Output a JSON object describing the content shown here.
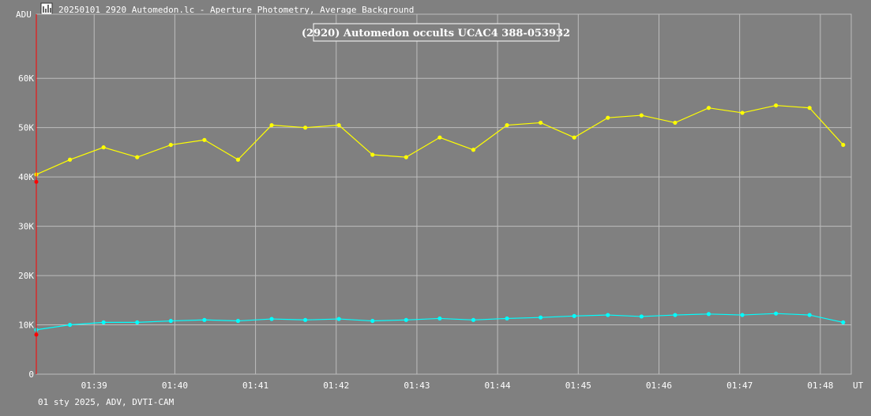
{
  "window": {
    "title": "20250101_2920_Automedon.lc - Aperture Photometry, Average Background",
    "icon": "lightcurve-app-icon"
  },
  "footer": {
    "text": "01 sty 2025, ADV, DVTI-CAM"
  },
  "colors": {
    "background": "#808080",
    "grid": "#bdbdbd",
    "target_series": "#ffff00",
    "comparison_series": "#00ffff",
    "marker": "#ff0000",
    "text": "#ffffff"
  },
  "chart_data": {
    "type": "line",
    "title": "(2920) Automedon occults UCAC4 388-053932",
    "ylabel": "ADU",
    "xlabel": "UT",
    "x_ticks": [
      "01:39",
      "01:40",
      "01:41",
      "01:42",
      "01:43",
      "01:44",
      "01:45",
      "01:46",
      "01:47",
      "01:48"
    ],
    "y_ticks": [
      "0",
      "10K",
      "20K",
      "30K",
      "40K",
      "50K",
      "60K"
    ],
    "y_tick_values": [
      0,
      10000,
      20000,
      30000,
      40000,
      50000,
      60000
    ],
    "ylim": [
      0,
      73000
    ],
    "xlim": [
      "01:38:17",
      "01:48:23"
    ],
    "grid": true,
    "series": [
      {
        "role": "target",
        "x": [
          "01:38:17",
          "01:38:42",
          "01:39:07",
          "01:39:32",
          "01:39:57",
          "01:40:22",
          "01:40:47",
          "01:41:12",
          "01:41:37",
          "01:42:02",
          "01:42:27",
          "01:42:52",
          "01:43:17",
          "01:43:42",
          "01:44:07",
          "01:44:32",
          "01:44:57",
          "01:45:22",
          "01:45:47",
          "01:46:12",
          "01:46:37",
          "01:47:02",
          "01:47:27",
          "01:47:52",
          "01:48:17"
        ],
        "values": [
          40500,
          43500,
          46000,
          44000,
          46500,
          47500,
          43500,
          50500,
          50000,
          50500,
          44500,
          44000,
          48000,
          45500,
          50500,
          51000,
          48000,
          52000,
          52500,
          51000,
          54000,
          53000,
          54500,
          54000,
          46500
        ]
      },
      {
        "role": "comparison",
        "x": [
          "01:38:17",
          "01:38:42",
          "01:39:07",
          "01:39:32",
          "01:39:57",
          "01:40:22",
          "01:40:47",
          "01:41:12",
          "01:41:37",
          "01:42:02",
          "01:42:27",
          "01:42:52",
          "01:43:17",
          "01:43:42",
          "01:44:07",
          "01:44:32",
          "01:44:57",
          "01:45:22",
          "01:45:47",
          "01:46:12",
          "01:46:37",
          "01:47:02",
          "01:47:27",
          "01:47:52",
          "01:48:17"
        ],
        "values": [
          9000,
          10000,
          10500,
          10500,
          10800,
          11000,
          10800,
          11200,
          11000,
          11200,
          10800,
          11000,
          11300,
          11000,
          11300,
          11500,
          11800,
          12000,
          11700,
          12000,
          12200,
          12000,
          12300,
          12000,
          10500
        ]
      }
    ],
    "marker": {
      "x": "01:38:17",
      "target_value": 39000,
      "comparison_value": 8000
    }
  }
}
